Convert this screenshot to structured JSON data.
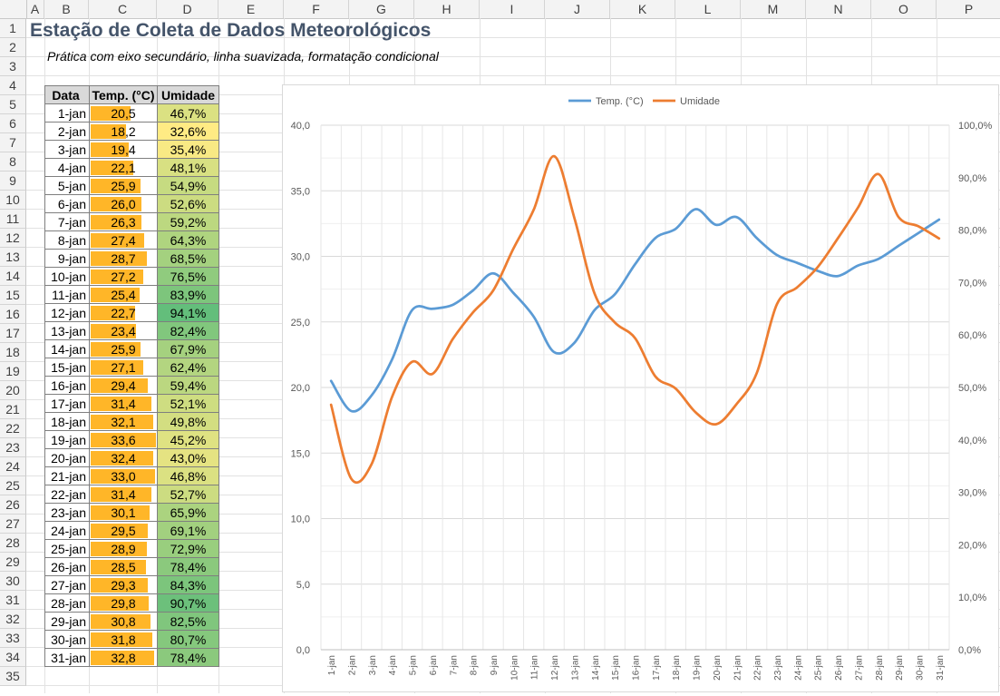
{
  "sheet": {
    "columns": [
      "A",
      "B",
      "C",
      "D",
      "E",
      "F",
      "G",
      "H",
      "I",
      "J",
      "K",
      "L",
      "M",
      "N",
      "O",
      "P"
    ],
    "rows": [
      "1",
      "2",
      "3",
      "4",
      "5",
      "6",
      "7",
      "8",
      "9",
      "10",
      "11",
      "12",
      "13",
      "14",
      "15",
      "16",
      "17",
      "18",
      "19",
      "20",
      "21",
      "22",
      "23",
      "24",
      "25",
      "26",
      "27",
      "28",
      "29",
      "30",
      "31",
      "32",
      "33",
      "34",
      "35"
    ],
    "title": "Estação de Coleta de Dados Meteorológicos",
    "subtitle": "Prática com eixo secundário, linha suavizada, formatação condicional"
  },
  "table": {
    "headers": [
      "Data",
      "Temp. (°C)",
      "Umidade"
    ],
    "rows": [
      {
        "date": "1-jan",
        "temp": "20,5",
        "hum": "46,7%"
      },
      {
        "date": "2-jan",
        "temp": "18,2",
        "hum": "32,6%"
      },
      {
        "date": "3-jan",
        "temp": "19,4",
        "hum": "35,4%"
      },
      {
        "date": "4-jan",
        "temp": "22,1",
        "hum": "48,1%"
      },
      {
        "date": "5-jan",
        "temp": "25,9",
        "hum": "54,9%"
      },
      {
        "date": "6-jan",
        "temp": "26,0",
        "hum": "52,6%"
      },
      {
        "date": "7-jan",
        "temp": "26,3",
        "hum": "59,2%"
      },
      {
        "date": "8-jan",
        "temp": "27,4",
        "hum": "64,3%"
      },
      {
        "date": "9-jan",
        "temp": "28,7",
        "hum": "68,5%"
      },
      {
        "date": "10-jan",
        "temp": "27,2",
        "hum": "76,5%"
      },
      {
        "date": "11-jan",
        "temp": "25,4",
        "hum": "83,9%"
      },
      {
        "date": "12-jan",
        "temp": "22,7",
        "hum": "94,1%"
      },
      {
        "date": "13-jan",
        "temp": "23,4",
        "hum": "82,4%"
      },
      {
        "date": "14-jan",
        "temp": "25,9",
        "hum": "67,9%"
      },
      {
        "date": "15-jan",
        "temp": "27,1",
        "hum": "62,4%"
      },
      {
        "date": "16-jan",
        "temp": "29,4",
        "hum": "59,4%"
      },
      {
        "date": "17-jan",
        "temp": "31,4",
        "hum": "52,1%"
      },
      {
        "date": "18-jan",
        "temp": "32,1",
        "hum": "49,8%"
      },
      {
        "date": "19-jan",
        "temp": "33,6",
        "hum": "45,2%"
      },
      {
        "date": "20-jan",
        "temp": "32,4",
        "hum": "43,0%"
      },
      {
        "date": "21-jan",
        "temp": "33,0",
        "hum": "46,8%"
      },
      {
        "date": "22-jan",
        "temp": "31,4",
        "hum": "52,7%"
      },
      {
        "date": "23-jan",
        "temp": "30,1",
        "hum": "65,9%"
      },
      {
        "date": "24-jan",
        "temp": "29,5",
        "hum": "69,1%"
      },
      {
        "date": "25-jan",
        "temp": "28,9",
        "hum": "72,9%"
      },
      {
        "date": "26-jan",
        "temp": "28,5",
        "hum": "78,4%"
      },
      {
        "date": "27-jan",
        "temp": "29,3",
        "hum": "84,3%"
      },
      {
        "date": "28-jan",
        "temp": "29,8",
        "hum": "90,7%"
      },
      {
        "date": "29-jan",
        "temp": "30,8",
        "hum": "82,5%"
      },
      {
        "date": "30-jan",
        "temp": "31,8",
        "hum": "80,7%"
      },
      {
        "date": "31-jan",
        "temp": "32,8",
        "hum": "78,4%"
      }
    ]
  },
  "colors": {
    "temp_series": "#5b9bd5",
    "hum_series": "#ed7d31",
    "databar": "#ffb628",
    "scale_low": "#ffeb84",
    "scale_high": "#63be7b",
    "title": "#44546a"
  },
  "chart_data": {
    "type": "line",
    "smoothed": true,
    "categories": [
      "1-jan",
      "2-jan",
      "3-jan",
      "4-jan",
      "5-jan",
      "6-jan",
      "7-jan",
      "8-jan",
      "9-jan",
      "10-jan",
      "11-jan",
      "12-jan",
      "13-jan",
      "14-jan",
      "15-jan",
      "16-jan",
      "17-jan",
      "18-jan",
      "19-jan",
      "20-jan",
      "21-jan",
      "22-jan",
      "23-jan",
      "24-jan",
      "25-jan",
      "26-jan",
      "27-jan",
      "28-jan",
      "29-jan",
      "30-jan",
      "31-jan"
    ],
    "series": [
      {
        "name": "Temp. (°C)",
        "axis": "primary",
        "values": [
          20.5,
          18.2,
          19.4,
          22.1,
          25.9,
          26.0,
          26.3,
          27.4,
          28.7,
          27.2,
          25.4,
          22.7,
          23.4,
          25.9,
          27.1,
          29.4,
          31.4,
          32.1,
          33.6,
          32.4,
          33.0,
          31.4,
          30.1,
          29.5,
          28.9,
          28.5,
          29.3,
          29.8,
          30.8,
          31.8,
          32.8
        ]
      },
      {
        "name": "Umidade",
        "axis": "secondary",
        "values": [
          46.7,
          32.6,
          35.4,
          48.1,
          54.9,
          52.6,
          59.2,
          64.3,
          68.5,
          76.5,
          83.9,
          94.1,
          82.4,
          67.9,
          62.4,
          59.4,
          52.1,
          49.8,
          45.2,
          43.0,
          46.8,
          52.7,
          65.9,
          69.1,
          72.9,
          78.4,
          84.3,
          90.7,
          82.5,
          80.7,
          78.4
        ]
      }
    ],
    "y_primary": {
      "min": 0,
      "max": 40,
      "ticks": [
        "0,0",
        "5,0",
        "10,0",
        "15,0",
        "20,0",
        "25,0",
        "30,0",
        "35,0",
        "40,0"
      ]
    },
    "y_secondary": {
      "min": 0,
      "max": 100,
      "ticks": [
        "0,0%",
        "10,0%",
        "20,0%",
        "30,0%",
        "40,0%",
        "50,0%",
        "60,0%",
        "70,0%",
        "80,0%",
        "90,0%",
        "100,0%"
      ]
    },
    "legend": "top",
    "grid": true
  }
}
